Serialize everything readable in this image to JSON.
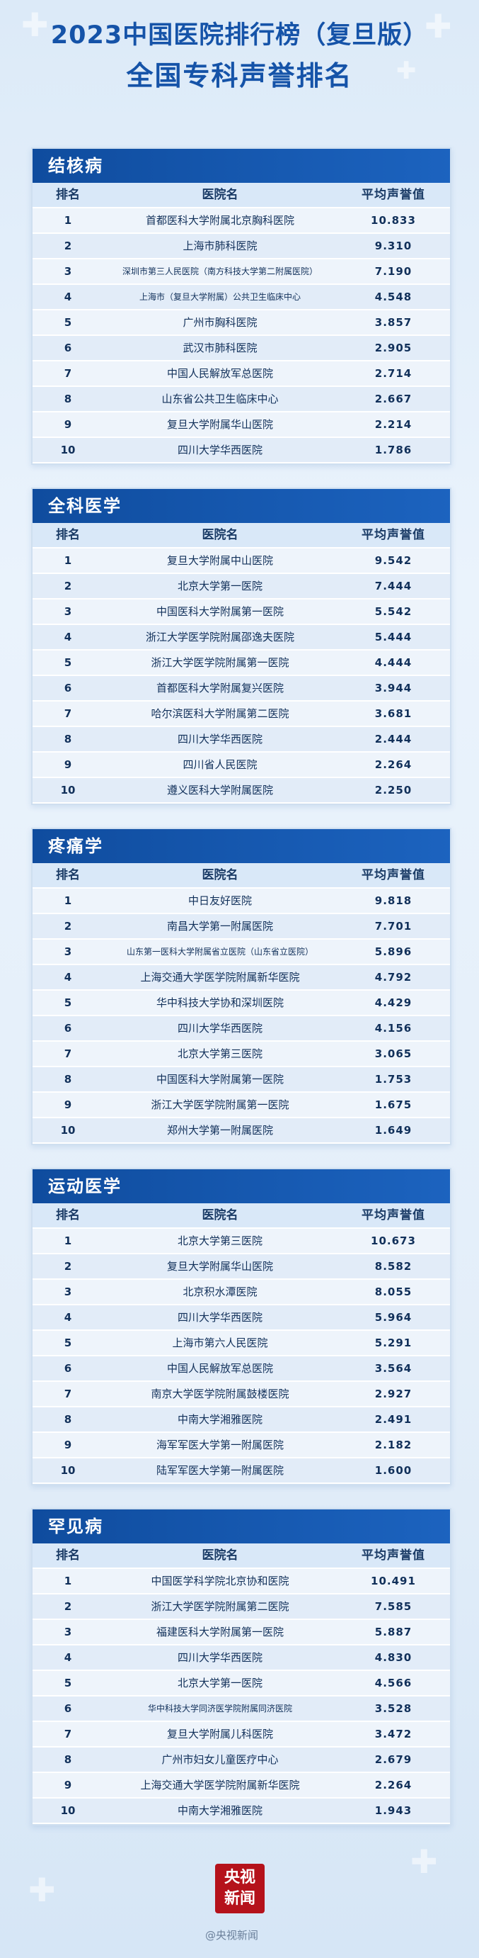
{
  "header": {
    "title_line1": "2023中国医院排行榜（复旦版）",
    "title_line2": "全国专科声誉排名"
  },
  "columns": {
    "rank": "排名",
    "name": "医院名",
    "score": "平均声誉值"
  },
  "sections": [
    {
      "title": "结核病",
      "rows": [
        {
          "rank": "1",
          "name": "首都医科大学附属北京胸科医院",
          "score": "10.833"
        },
        {
          "rank": "2",
          "name": "上海市肺科医院",
          "score": "9.310"
        },
        {
          "rank": "3",
          "name": "深圳市第三人民医院（南方科技大学第二附属医院）",
          "score": "7.190"
        },
        {
          "rank": "4",
          "name": "上海市（复旦大学附属）公共卫生临床中心",
          "score": "4.548"
        },
        {
          "rank": "5",
          "name": "广州市胸科医院",
          "score": "3.857"
        },
        {
          "rank": "6",
          "name": "武汉市肺科医院",
          "score": "2.905"
        },
        {
          "rank": "7",
          "name": "中国人民解放军总医院",
          "score": "2.714"
        },
        {
          "rank": "8",
          "name": "山东省公共卫生临床中心",
          "score": "2.667"
        },
        {
          "rank": "9",
          "name": "复旦大学附属华山医院",
          "score": "2.214"
        },
        {
          "rank": "10",
          "name": "四川大学华西医院",
          "score": "1.786"
        }
      ]
    },
    {
      "title": "全科医学",
      "rows": [
        {
          "rank": "1",
          "name": "复旦大学附属中山医院",
          "score": "9.542"
        },
        {
          "rank": "2",
          "name": "北京大学第一医院",
          "score": "7.444"
        },
        {
          "rank": "3",
          "name": "中国医科大学附属第一医院",
          "score": "5.542"
        },
        {
          "rank": "4",
          "name": "浙江大学医学院附属邵逸夫医院",
          "score": "5.444"
        },
        {
          "rank": "5",
          "name": "浙江大学医学院附属第一医院",
          "score": "4.444"
        },
        {
          "rank": "6",
          "name": "首都医科大学附属复兴医院",
          "score": "3.944"
        },
        {
          "rank": "7",
          "name": "哈尔滨医科大学附属第二医院",
          "score": "3.681"
        },
        {
          "rank": "8",
          "name": "四川大学华西医院",
          "score": "2.444"
        },
        {
          "rank": "9",
          "name": "四川省人民医院",
          "score": "2.264"
        },
        {
          "rank": "10",
          "name": "遵义医科大学附属医院",
          "score": "2.250"
        }
      ]
    },
    {
      "title": "疼痛学",
      "rows": [
        {
          "rank": "1",
          "name": "中日友好医院",
          "score": "9.818"
        },
        {
          "rank": "2",
          "name": "南昌大学第一附属医院",
          "score": "7.701"
        },
        {
          "rank": "3",
          "name": "山东第一医科大学附属省立医院（山东省立医院）",
          "score": "5.896"
        },
        {
          "rank": "4",
          "name": "上海交通大学医学院附属新华医院",
          "score": "4.792"
        },
        {
          "rank": "5",
          "name": "华中科技大学协和深圳医院",
          "score": "4.429"
        },
        {
          "rank": "6",
          "name": "四川大学华西医院",
          "score": "4.156"
        },
        {
          "rank": "7",
          "name": "北京大学第三医院",
          "score": "3.065"
        },
        {
          "rank": "8",
          "name": "中国医科大学附属第一医院",
          "score": "1.753"
        },
        {
          "rank": "9",
          "name": "浙江大学医学院附属第一医院",
          "score": "1.675"
        },
        {
          "rank": "10",
          "name": "郑州大学第一附属医院",
          "score": "1.649"
        }
      ]
    },
    {
      "title": "运动医学",
      "rows": [
        {
          "rank": "1",
          "name": "北京大学第三医院",
          "score": "10.673"
        },
        {
          "rank": "2",
          "name": "复旦大学附属华山医院",
          "score": "8.582"
        },
        {
          "rank": "3",
          "name": "北京积水潭医院",
          "score": "8.055"
        },
        {
          "rank": "4",
          "name": "四川大学华西医院",
          "score": "5.964"
        },
        {
          "rank": "5",
          "name": "上海市第六人民医院",
          "score": "5.291"
        },
        {
          "rank": "6",
          "name": "中国人民解放军总医院",
          "score": "3.564"
        },
        {
          "rank": "7",
          "name": "南京大学医学院附属鼓楼医院",
          "score": "2.927"
        },
        {
          "rank": "8",
          "name": "中南大学湘雅医院",
          "score": "2.491"
        },
        {
          "rank": "9",
          "name": "海军军医大学第一附属医院",
          "score": "2.182"
        },
        {
          "rank": "10",
          "name": "陆军军医大学第一附属医院",
          "score": "1.600"
        }
      ]
    },
    {
      "title": "罕见病",
      "rows": [
        {
          "rank": "1",
          "name": "中国医学科学院北京协和医院",
          "score": "10.491"
        },
        {
          "rank": "2",
          "name": "浙江大学医学院附属第二医院",
          "score": "7.585"
        },
        {
          "rank": "3",
          "name": "福建医科大学附属第一医院",
          "score": "5.887"
        },
        {
          "rank": "4",
          "name": "四川大学华西医院",
          "score": "4.830"
        },
        {
          "rank": "5",
          "name": "北京大学第一医院",
          "score": "4.566"
        },
        {
          "rank": "6",
          "name": "华中科技大学同济医学院附属同济医院",
          "score": "3.528"
        },
        {
          "rank": "7",
          "name": "复旦大学附属儿科医院",
          "score": "3.472"
        },
        {
          "rank": "8",
          "name": "广州市妇女儿童医疗中心",
          "score": "2.679"
        },
        {
          "rank": "9",
          "name": "上海交通大学医学院附属新华医院",
          "score": "2.264"
        },
        {
          "rank": "10",
          "name": "中南大学湘雅医院",
          "score": "1.943"
        }
      ]
    }
  ],
  "footer": {
    "logo_line1": "央视",
    "logo_line2": "新闻",
    "watermark": "@央视新闻"
  }
}
